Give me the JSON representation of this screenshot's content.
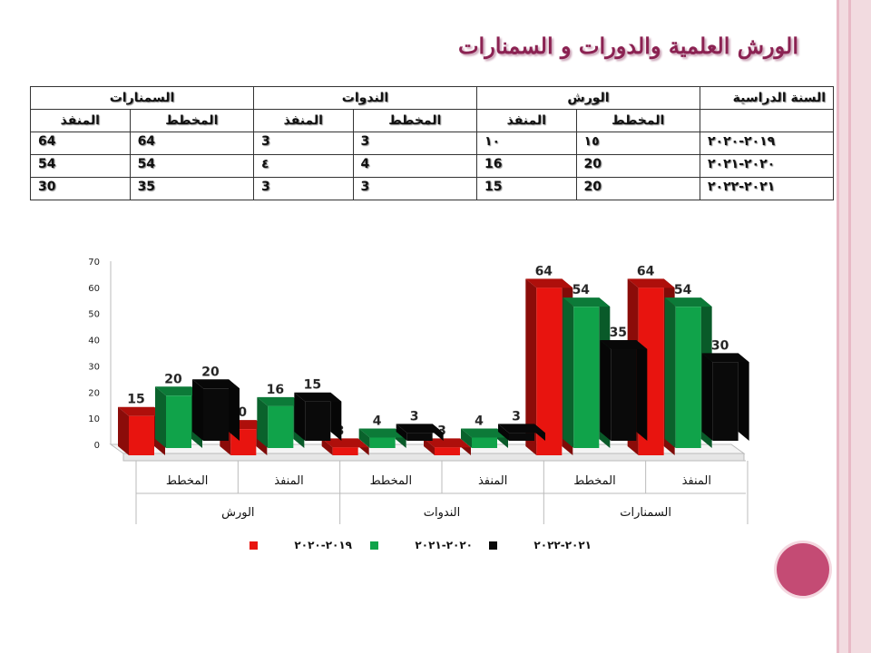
{
  "title": "الورش العلمية والدورات و السمنارات",
  "table": {
    "headers": [
      "السنة الدراسية",
      "الورش",
      "الندوات",
      "السمنارات"
    ],
    "subheaders": [
      "المخطط",
      "المنفذ",
      "المخطط",
      "المنفذ",
      "المخطط",
      "المنفذ"
    ],
    "rows": [
      {
        "year": "٢٠١٩-٢٠٢٠",
        "cells": [
          "١٥",
          "١٠",
          "3",
          "3",
          "64",
          "64"
        ]
      },
      {
        "year": "٢٠٢٠-٢٠٢١",
        "cells": [
          "20",
          "16",
          "4",
          "٤",
          "54",
          "54"
        ]
      },
      {
        "year": "٢٠٢١-٢٠٢٢",
        "cells": [
          "20",
          "15",
          "3",
          "3",
          "35",
          "30"
        ]
      }
    ]
  },
  "chart_data": {
    "type": "bar",
    "categories": [
      "المخطط",
      "المنفذ",
      "المخطط",
      "المنفذ",
      "المخطط",
      "المنفذ"
    ],
    "groups": [
      "الورش",
      "الندوات",
      "السمنارات"
    ],
    "series": [
      {
        "name": "٢٠١٩-٢٠٢٠",
        "color": "#e8140f",
        "values": [
          15,
          10,
          3,
          3,
          64,
          64
        ]
      },
      {
        "name": "٢٠٢٠-٢٠٢١",
        "color": "#10a34a",
        "values": [
          20,
          16,
          4,
          4,
          54,
          54
        ]
      },
      {
        "name": "٢٠٢١-٢٠٢٢",
        "color": "#0a0a0a",
        "values": [
          20,
          15,
          3,
          3,
          35,
          30
        ]
      }
    ],
    "yticks": [
      "0",
      "10",
      "20",
      "30",
      "40",
      "50",
      "60",
      "70"
    ],
    "ylim": [
      0,
      70
    ],
    "legend_position": "bottom",
    "grid": false
  }
}
